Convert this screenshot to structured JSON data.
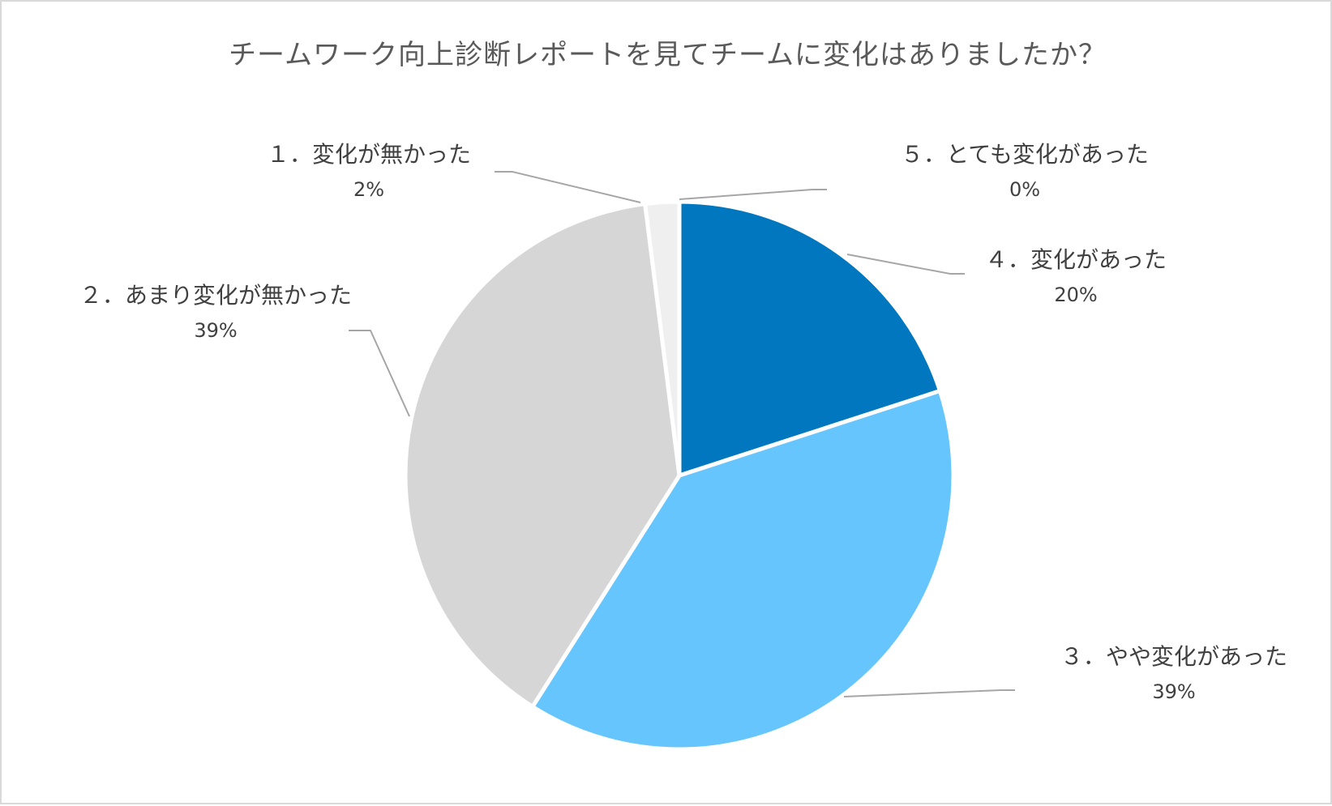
{
  "chart_data": {
    "type": "pie",
    "title": "チームワーク向上診断レポートを見てチームに変化はありましたか？",
    "start_angle_deg": 0,
    "direction": "clockwise",
    "slices": [
      {
        "label": "４．変化があった",
        "value": 20,
        "value_label": "20%",
        "color": "#0077BE"
      },
      {
        "label": "３．やや変化があった",
        "value": 39,
        "value_label": "39%",
        "color": "#66C5FD"
      },
      {
        "label": "２．あまり変化が無かった",
        "value": 39,
        "value_label": "39%",
        "color": "#D6D6D6"
      },
      {
        "label": "１．変化が無かった",
        "value": 2,
        "value_label": "2%",
        "color": "#EFEFEF"
      },
      {
        "label": "５．とても変化があった",
        "value": 0,
        "value_label": "0%",
        "color": "#0B4F8A"
      }
    ],
    "leader_line_color": "#A6A6A6"
  }
}
